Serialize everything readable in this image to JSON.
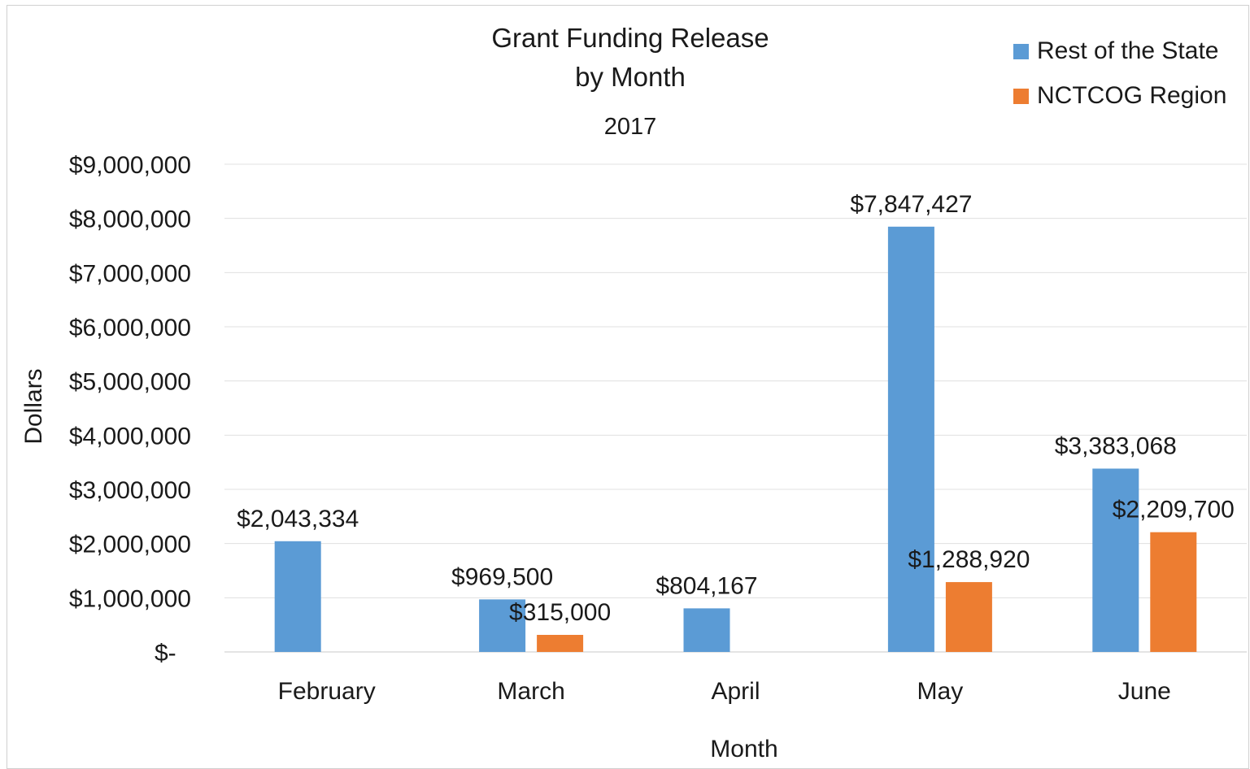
{
  "chart_data": {
    "type": "bar",
    "title_lines": [
      "Grant Funding Release",
      "by Month"
    ],
    "subtitle": "2017",
    "xlabel": "Month",
    "ylabel": "Dollars",
    "categories": [
      "February",
      "March",
      "April",
      "May",
      "June"
    ],
    "series": [
      {
        "name": "Rest of the State",
        "color": "#5B9BD5",
        "values": [
          2043334,
          969500,
          804167,
          7847427,
          3383068
        ],
        "labels": [
          "$2,043,334",
          "$969,500",
          "$804,167",
          "$7,847,427",
          "$3,383,068"
        ]
      },
      {
        "name": "NCTCOG Region",
        "color": "#ED7D31",
        "values": [
          null,
          315000,
          null,
          1288920,
          2209700
        ],
        "labels": [
          "",
          "$315,000",
          "",
          "$1,288,920",
          "$2,209,700"
        ]
      }
    ],
    "ylim": [
      0,
      9000000
    ],
    "yticks": [
      0,
      1000000,
      2000000,
      3000000,
      4000000,
      5000000,
      6000000,
      7000000,
      8000000,
      9000000
    ],
    "ytick_labels": [
      "$-",
      "$1,000,000",
      "$2,000,000",
      "$3,000,000",
      "$4,000,000",
      "$5,000,000",
      "$6,000,000",
      "$7,000,000",
      "$8,000,000",
      "$9,000,000"
    ],
    "grid": true,
    "legend_position": "top-right"
  }
}
